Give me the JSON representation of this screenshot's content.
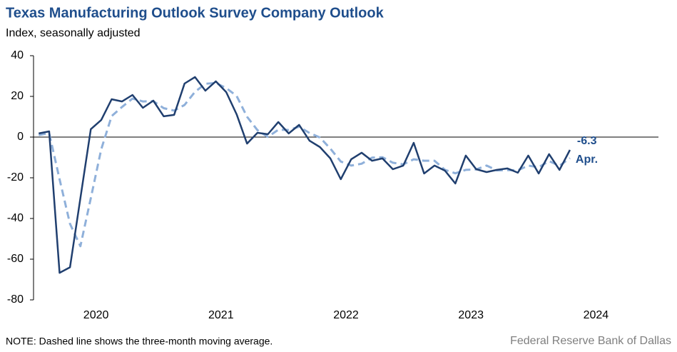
{
  "chart_data": {
    "type": "line",
    "title": "Texas Manufacturing Outlook Survey Company Outlook",
    "subtitle": "Index, seasonally adjusted",
    "note": "NOTE: Dashed line shows the three-month  moving average.",
    "source": "Federal Reserve Bank of Dallas",
    "last_label": "Apr.",
    "categories": [
      null,
      null,
      null,
      null,
      null,
      null,
      "2020",
      null,
      null,
      null,
      null,
      null,
      null,
      null,
      null,
      null,
      null,
      null,
      "2021",
      null,
      null,
      null,
      null,
      null,
      null,
      null,
      null,
      null,
      null,
      null,
      "2022",
      null,
      null,
      null,
      null,
      null,
      null,
      null,
      null,
      null,
      null,
      null,
      "2023",
      null,
      null,
      null,
      null,
      null,
      null,
      null,
      null,
      null,
      null,
      null,
      "2024",
      null,
      null,
      null,
      null,
      null
    ],
    "series": [
      {
        "name": "Company outlook",
        "color": "#203f6f",
        "dashed": false,
        "values": [
          1.8,
          2.8,
          -66.7,
          -64,
          -30,
          3.9,
          8.4,
          18.6,
          17.5,
          20.7,
          14.4,
          17.9,
          10.2,
          10.9,
          26.3,
          29.5,
          22.8,
          27.4,
          22.1,
          11.2,
          -3.2,
          2.1,
          1.4,
          7.4,
          1.8,
          6,
          -1.8,
          -4.9,
          -10.5,
          -20.7,
          -10.9,
          -7.7,
          -11.6,
          -10.5,
          -15.8,
          -14,
          -2.8,
          -17.9,
          -14,
          -16.5,
          -22.8,
          -9.1,
          -15.8,
          -17.2,
          -16.1,
          -15.4,
          -17.5,
          -9.1,
          -17.9,
          -8.4,
          -16.1,
          -6.3,
          null,
          null,
          null,
          null,
          null,
          null,
          null,
          null
        ]
      },
      {
        "name": "Three-month moving average",
        "color": "#8fb0da",
        "dashed": true,
        "values": [
          1,
          2,
          -20.7,
          -42.6,
          -53.6,
          -30,
          -6,
          10.3,
          14.8,
          18.9,
          17.5,
          17.7,
          14.2,
          13,
          15.8,
          22.2,
          26.2,
          26.6,
          24.1,
          20.2,
          10,
          3.4,
          0.1,
          3.6,
          3.5,
          5.1,
          2,
          -0.2,
          -5.7,
          -12,
          -14,
          -13.1,
          -10.1,
          -9.9,
          -12.6,
          -13.4,
          -10.9,
          -11.6,
          -11.6,
          -16.1,
          -17.8,
          -16.1,
          -15.9,
          -14,
          -16.4,
          -16.2,
          -16.3,
          -14,
          -14.8,
          -11.8,
          -14.1,
          -10.3,
          null,
          null,
          null,
          null,
          null,
          null,
          null,
          null
        ]
      }
    ],
    "ylim": [
      -80,
      40
    ],
    "yticks": [
      -80,
      -60,
      -40,
      -20,
      0,
      20,
      40
    ],
    "grid": false
  }
}
